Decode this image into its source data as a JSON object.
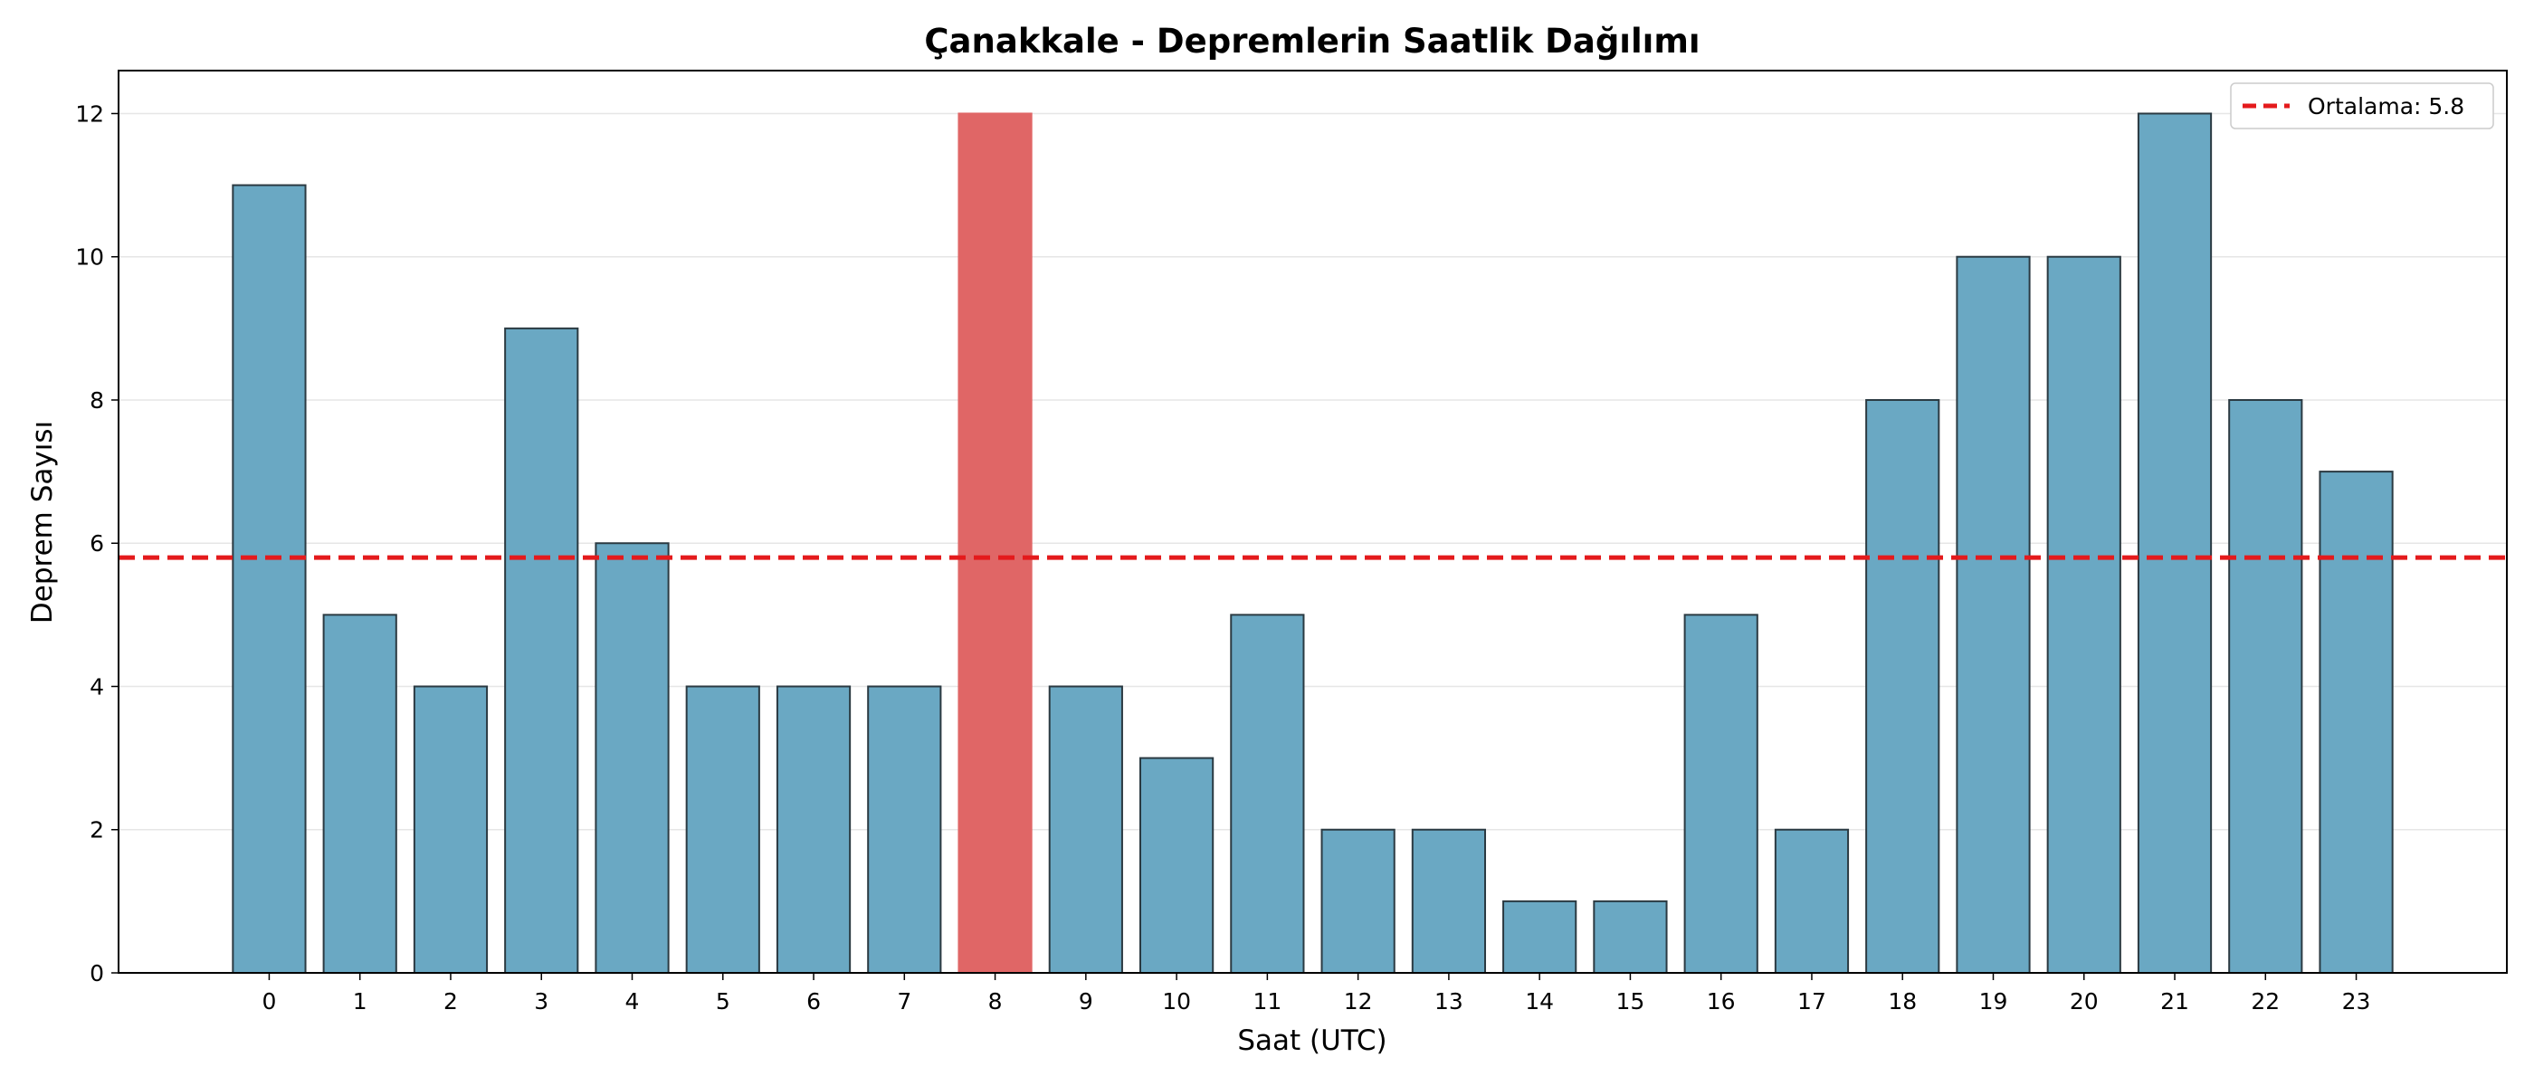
{
  "chart_data": {
    "type": "bar",
    "title": "Çanakkale - Depremlerin Saatlik Dağılımı",
    "xlabel": "Saat (UTC)",
    "ylabel": "Deprem Sayısı",
    "categories": [
      "0",
      "1",
      "2",
      "3",
      "4",
      "5",
      "6",
      "7",
      "8",
      "9",
      "10",
      "11",
      "12",
      "13",
      "14",
      "15",
      "16",
      "17",
      "18",
      "19",
      "20",
      "21",
      "22",
      "23"
    ],
    "values": [
      11,
      5,
      4,
      9,
      6,
      4,
      4,
      4,
      12,
      4,
      3,
      5,
      2,
      2,
      1,
      1,
      5,
      2,
      8,
      10,
      10,
      12,
      8,
      7
    ],
    "highlight_index": 8,
    "ylim": [
      0,
      12.6
    ],
    "yticks": [
      0,
      2,
      4,
      6,
      8,
      10,
      12
    ],
    "grid": "y",
    "mean_line": {
      "value": 5.8,
      "label": "Ortalama: 5.8",
      "style": "dashed"
    },
    "legend_position": "top-right",
    "colors": {
      "bar": "#6aa8c3",
      "highlight_bar": "#e06666",
      "bar_edge": "#2b3a42",
      "mean_line": "#e41a1c",
      "grid": "#e6e6e6"
    }
  }
}
